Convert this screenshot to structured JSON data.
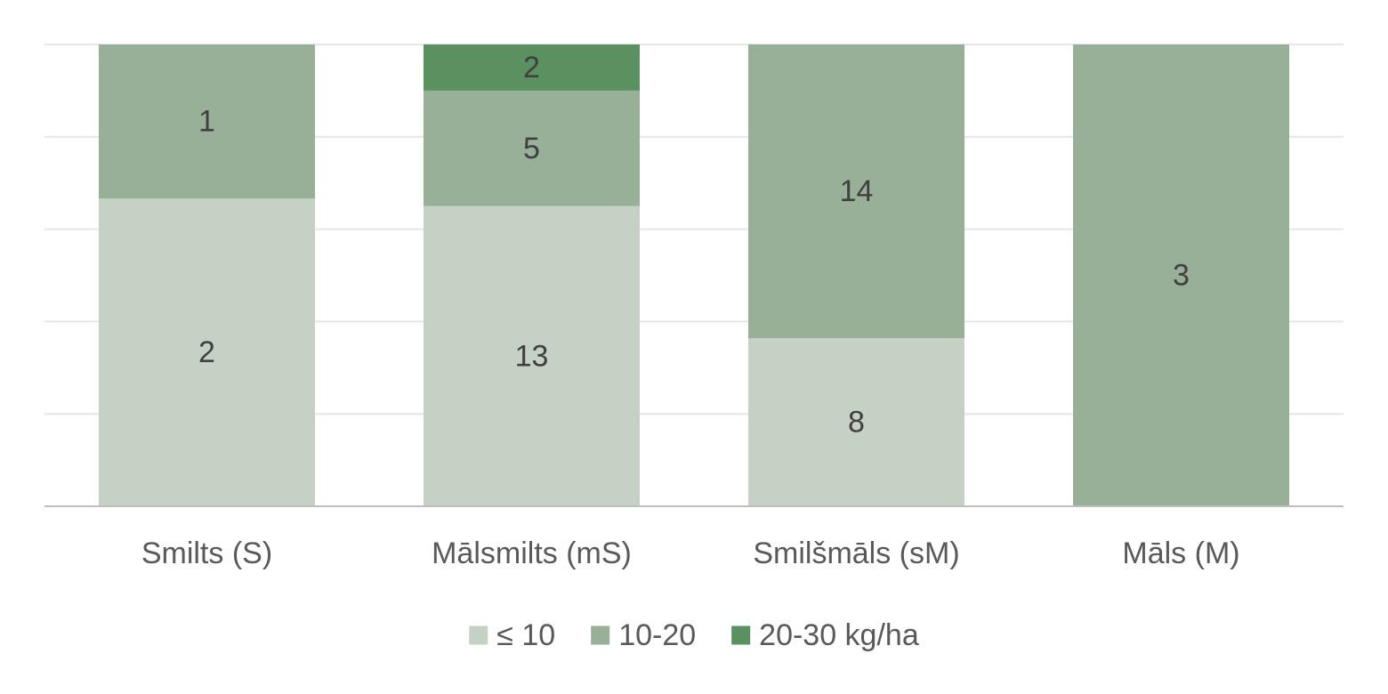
{
  "chart_data": {
    "type": "bar",
    "stacked": true,
    "percent_stacked": true,
    "categories": [
      "Smilts (S)",
      "Mālsmilts (mS)",
      "Smilšmāls (sM)",
      "Māls (M)"
    ],
    "series": [
      {
        "name": "≤ 10",
        "values": [
          2,
          13,
          8,
          0
        ],
        "color": "#c6d1c6"
      },
      {
        "name": "10-20",
        "values": [
          1,
          5,
          14,
          3
        ],
        "color": "#98af98"
      },
      {
        "name": "20-30 kg/ha",
        "values": [
          0,
          2,
          0,
          0
        ],
        "color": "#5b9160"
      }
    ],
    "title": "",
    "xlabel": "",
    "ylabel": "",
    "ylim": [
      0,
      100
    ],
    "grid": true,
    "legend": "bottom",
    "data_labels": true
  }
}
